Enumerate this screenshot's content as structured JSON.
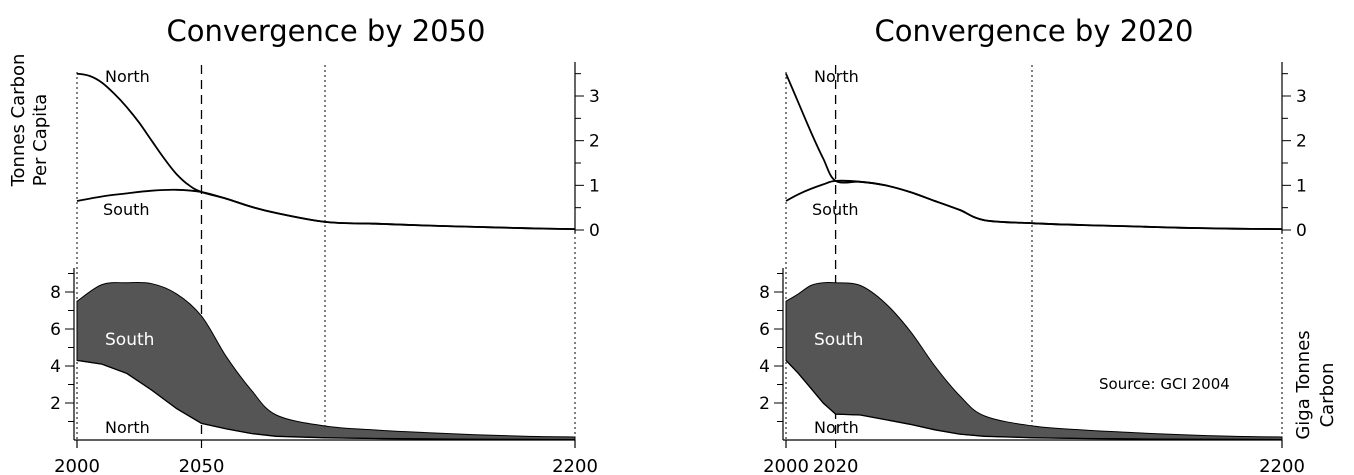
{
  "y_label_left": [
    "Tonnes Carbon",
    "Per Capita"
  ],
  "y_label_right": [
    "Giga Tonnes",
    "Carbon"
  ],
  "source": "Source:  GCI 2004",
  "upper_ticks": [
    "0",
    "1",
    "2",
    "3"
  ],
  "lower_ticks": [
    "2",
    "4",
    "6",
    "8"
  ],
  "chart_data": [
    {
      "type": "area",
      "title": "Convergence by 2050",
      "convergence_year": 2050,
      "x_tick_labels": [
        "2000",
        "2050",
        "2200"
      ],
      "upper_labels": {
        "north": "North",
        "south": "South"
      },
      "lower_labels": {
        "south": "South",
        "north": "North"
      },
      "per_capita": {
        "ylim": [
          0,
          3.6
        ],
        "series": [
          {
            "name": "North",
            "x": [
              2000,
              2005,
              2010,
              2015,
              2020,
              2025,
              2030,
              2035,
              2040,
              2045,
              2050,
              2060,
              2070,
              2080,
              2100,
              2120,
              2140,
              2160,
              2180,
              2200
            ],
            "values": [
              3.5,
              3.45,
              3.3,
              3.05,
              2.75,
              2.4,
              2.0,
              1.6,
              1.25,
              1.0,
              0.85,
              0.7,
              0.52,
              0.38,
              0.18,
              0.14,
              0.1,
              0.07,
              0.04,
              0.02
            ]
          },
          {
            "name": "South",
            "x": [
              2000,
              2010,
              2020,
              2030,
              2040,
              2050,
              2060,
              2070,
              2080,
              2100,
              2120,
              2140,
              2160,
              2180,
              2200
            ],
            "values": [
              0.65,
              0.75,
              0.82,
              0.88,
              0.9,
              0.85,
              0.7,
              0.52,
              0.38,
              0.18,
              0.14,
              0.1,
              0.07,
              0.04,
              0.02
            ]
          }
        ]
      },
      "emissions_gtc": {
        "ylim": [
          0,
          9.2
        ],
        "series": [
          {
            "name": "North",
            "x": [
              2000,
              2010,
              2020,
              2030,
              2040,
              2050,
              2060,
              2070,
              2080,
              2100,
              2120,
              2140,
              2160,
              2180,
              2200
            ],
            "values": [
              4.3,
              4.1,
              3.6,
              2.7,
              1.7,
              0.9,
              0.6,
              0.35,
              0.2,
              0.12,
              0.08,
              0.06,
              0.04,
              0.03,
              0.02
            ]
          },
          {
            "name": "South",
            "x": [
              2000,
              2010,
              2020,
              2030,
              2040,
              2050,
              2060,
              2070,
              2080,
              2100,
              2120,
              2140,
              2160,
              2180,
              2200
            ],
            "values": [
              3.2,
              4.3,
              4.9,
              5.75,
              6.2,
              5.8,
              3.9,
              2.35,
              1.15,
              0.63,
              0.46,
              0.34,
              0.24,
              0.17,
              0.14
            ]
          },
          {
            "name": "Total",
            "x": [
              2000,
              2010,
              2020,
              2030,
              2040,
              2050,
              2060,
              2070,
              2080,
              2100,
              2120,
              2140,
              2160,
              2180,
              2200
            ],
            "values": [
              7.5,
              8.4,
              8.5,
              8.45,
              7.9,
              6.7,
              4.5,
              2.7,
              1.35,
              0.75,
              0.54,
              0.4,
              0.28,
              0.2,
              0.16
            ]
          }
        ]
      }
    },
    {
      "type": "area",
      "title": "Convergence by 2020",
      "convergence_year": 2020,
      "x_tick_labels": [
        "2000",
        "2020",
        "2200"
      ],
      "upper_labels": {
        "north": "North",
        "south": "South"
      },
      "lower_labels": {
        "south": "South",
        "north": "North"
      },
      "per_capita": {
        "ylim": [
          0,
          3.6
        ],
        "series": [
          {
            "name": "North",
            "x": [
              2000,
              2005,
              2010,
              2015,
              2020,
              2030,
              2040,
              2050,
              2060,
              2070,
              2080,
              2100,
              2120,
              2140,
              2160,
              2180,
              2200
            ],
            "values": [
              3.5,
              2.85,
              2.2,
              1.6,
              1.1,
              1.08,
              1.0,
              0.85,
              0.65,
              0.45,
              0.22,
              0.15,
              0.11,
              0.08,
              0.05,
              0.03,
              0.02
            ]
          },
          {
            "name": "South",
            "x": [
              2000,
              2005,
              2010,
              2015,
              2020,
              2030,
              2040,
              2050,
              2060,
              2070,
              2080,
              2100,
              2120,
              2140,
              2160,
              2180,
              2200
            ],
            "values": [
              0.65,
              0.8,
              0.92,
              1.02,
              1.1,
              1.08,
              1.0,
              0.85,
              0.65,
              0.45,
              0.22,
              0.15,
              0.11,
              0.08,
              0.05,
              0.03,
              0.02
            ]
          }
        ]
      },
      "emissions_gtc": {
        "ylim": [
          0,
          9.2
        ],
        "series": [
          {
            "name": "North",
            "x": [
              2000,
              2005,
              2010,
              2015,
              2020,
              2030,
              2040,
              2050,
              2060,
              2070,
              2080,
              2100,
              2120,
              2140,
              2160,
              2180,
              2200
            ],
            "values": [
              4.3,
              3.6,
              2.8,
              2.0,
              1.4,
              1.35,
              1.1,
              0.85,
              0.55,
              0.32,
              0.2,
              0.12,
              0.08,
              0.06,
              0.04,
              0.03,
              0.02
            ]
          },
          {
            "name": "South",
            "x": [
              2000,
              2005,
              2010,
              2015,
              2020,
              2030,
              2040,
              2050,
              2060,
              2070,
              2080,
              2100,
              2120,
              2140,
              2160,
              2180,
              2200
            ],
            "values": [
              3.2,
              4.3,
              5.55,
              6.5,
              7.1,
              7.0,
              6.3,
              5.05,
              3.45,
              2.08,
              1.1,
              0.63,
              0.46,
              0.34,
              0.24,
              0.17,
              0.14
            ]
          },
          {
            "name": "Total",
            "x": [
              2000,
              2005,
              2010,
              2015,
              2020,
              2030,
              2040,
              2050,
              2060,
              2070,
              2080,
              2100,
              2120,
              2140,
              2160,
              2180,
              2200
            ],
            "values": [
              7.5,
              7.9,
              8.35,
              8.5,
              8.5,
              8.35,
              7.4,
              5.9,
              4.0,
              2.4,
              1.3,
              0.75,
              0.54,
              0.4,
              0.28,
              0.2,
              0.16
            ]
          }
        ]
      }
    }
  ]
}
